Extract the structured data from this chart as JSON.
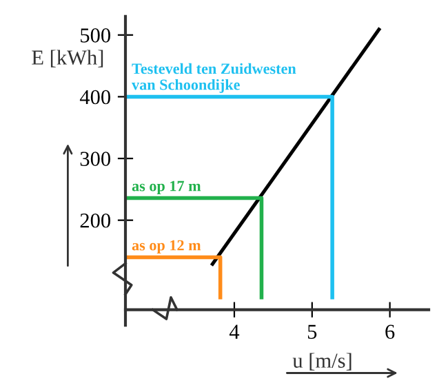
{
  "chart_data": {
    "type": "line",
    "xlabel": "u [m/s]",
    "ylabel": "E [kWh]",
    "xlim": [
      2.6,
      6.5
    ],
    "ylim": [
      30,
      530
    ],
    "xticks": [
      4,
      5,
      6
    ],
    "yticks": [
      200,
      300,
      400,
      500
    ],
    "grid": false,
    "legend": false,
    "series": [
      {
        "color": "#000000",
        "x": [
          3.72,
          5.86
        ],
        "values": [
          129,
          509
        ]
      },
      {
        "name": "as op 12 m",
        "color": "#ff8c1a",
        "x": [
          2.6,
          3.82,
          3.82
        ],
        "values": [
          140,
          140,
          75
        ]
      },
      {
        "name": "as op 17 m",
        "color": "#22b14c",
        "x": [
          2.6,
          4.35,
          4.35
        ],
        "values": [
          236,
          236,
          75
        ]
      },
      {
        "name": "Testeveld ten Zuidwesten\nvan Schoondijke",
        "color": "#1ec0f0",
        "x": [
          2.6,
          5.26,
          5.26
        ],
        "values": [
          400,
          400,
          75
        ]
      }
    ]
  }
}
